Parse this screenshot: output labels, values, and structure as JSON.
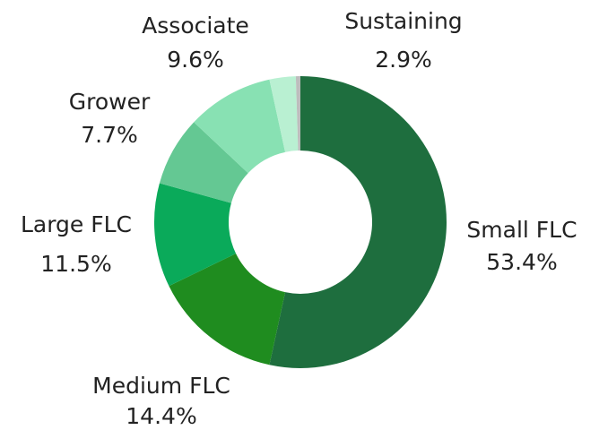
{
  "chart_data": {
    "type": "donut",
    "categories": [
      "Small FLC",
      "Medium FLC",
      "Large FLC",
      "Grower",
      "Associate",
      "Sustaining",
      null
    ],
    "values": [
      53.4,
      14.4,
      11.5,
      7.7,
      9.6,
      2.9,
      0.5
    ],
    "value_labels": [
      "53.4%",
      "14.4%",
      "11.5%",
      "7.7%",
      "9.6%",
      "2.9%",
      null
    ],
    "colors": [
      "#1e6e3e",
      "#1f8c1f",
      "#0aaa5a",
      "#64c893",
      "#88e1b3",
      "#b9f0d2",
      "#bdbdbd"
    ]
  }
}
